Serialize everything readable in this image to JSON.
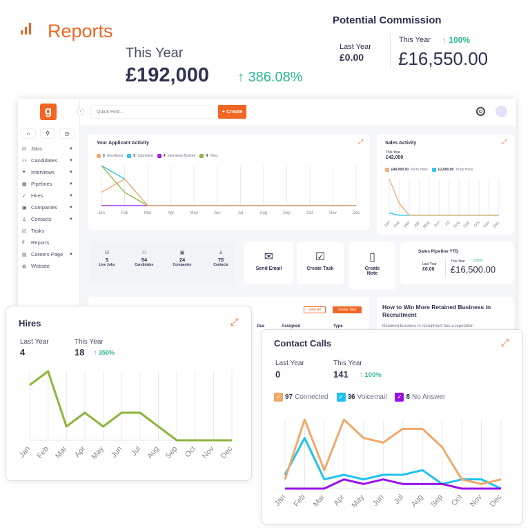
{
  "header": {
    "title": "Reports",
    "this_year_label": "This Year",
    "this_year_value": "£192,000",
    "change": "↑ 386.08%"
  },
  "commission": {
    "title": "Potential Commission",
    "last_year_label": "Last Year",
    "last_year_value": "£0.00",
    "this_year_label": "This Year",
    "change": "↑ 100%",
    "this_year_value": "£16,550.00"
  },
  "topbar": {
    "search_placeholder": "Quick Find...",
    "create_label": "+ Create"
  },
  "sidebar": {
    "items": [
      {
        "label": "Jobs",
        "icon": "⛁",
        "caret": true
      },
      {
        "label": "Candidates",
        "icon": "⚇",
        "caret": true
      },
      {
        "label": "Interviews",
        "icon": "⏷",
        "caret": true
      },
      {
        "label": "Pipelines",
        "icon": "▦",
        "caret": true
      },
      {
        "label": "Hires",
        "icon": "✓",
        "caret": true
      },
      {
        "label": "Companies",
        "icon": "▣",
        "caret": true
      },
      {
        "label": "Contacts",
        "icon": "♙",
        "caret": true
      },
      {
        "label": "Tasks",
        "icon": "☑",
        "caret": false
      },
      {
        "label": "Reports",
        "icon": "ıl",
        "caret": false
      },
      {
        "label": "Careers Page",
        "icon": "▤",
        "caret": true
      },
      {
        "label": "Website",
        "icon": "◍",
        "caret": false
      }
    ]
  },
  "applicant": {
    "title": "Your Applicant Activity",
    "legend": [
      {
        "count": "3",
        "label": "Shortlisted"
      },
      {
        "count": "5",
        "label": "Submitted"
      },
      {
        "count": "4",
        "label": "Interviews Booked"
      },
      {
        "count": "4",
        "label": "Hires"
      }
    ]
  },
  "sales": {
    "title": "Sales Activity",
    "this_year_label": "This Year",
    "this_year_value": "£42,000",
    "legend": [
      {
        "count": "£40,000.00",
        "label": "Perm Hires"
      },
      {
        "count": "£2,000.00",
        "label": "Temp Hires"
      }
    ]
  },
  "stats": [
    {
      "value": "5",
      "label": "Live Jobs",
      "icon": "⛁"
    },
    {
      "value": "54",
      "label": "Candidates",
      "icon": "⚇"
    },
    {
      "value": "24",
      "label": "Companies",
      "icon": "▣"
    },
    {
      "value": "75",
      "label": "Contacts",
      "icon": "♙"
    }
  ],
  "actions": [
    {
      "label": "Send Email",
      "icon": "✉"
    },
    {
      "label": "Create Task",
      "icon": "☑"
    },
    {
      "label": "Create Note",
      "icon": "▯"
    }
  ],
  "pipeline": {
    "title": "Sales Pipeline YTD",
    "last_year_label": "Last Year",
    "last_year_value": "£0.00",
    "this_year_label": "This Year",
    "change": "↑ 100%",
    "this_year_value": "£16,500.00"
  },
  "tasks": {
    "view_all": "View All",
    "create_task": "Create Task",
    "columns": [
      "Due",
      "Assigned",
      "Type"
    ]
  },
  "article": {
    "title": "How to Win More Retained Business in Recruitment",
    "excerpt": "Retained business in recruitment has a reputation"
  },
  "hires": {
    "title": "Hires",
    "last_year_label": "Last Year",
    "last_year_value": "4",
    "this_year_label": "This Year",
    "this_year_value": "18",
    "change": "↑ 350%"
  },
  "calls": {
    "title": "Contact Calls",
    "last_year_label": "Last Year",
    "last_year_value": "0",
    "this_year_label": "This Year",
    "this_year_value": "141",
    "change": "↑ 100%",
    "legend": [
      {
        "count": "97",
        "label": "Connected"
      },
      {
        "count": "36",
        "label": "Voicemail"
      },
      {
        "count": "8",
        "label": "No Answer"
      }
    ]
  },
  "colors": {
    "brand": "#f26522",
    "green": "#2bb894",
    "orange": "#f0a868",
    "cyan": "#1ec2f0",
    "purple": "#9b10e8",
    "lime": "#8cb43c"
  },
  "chart_data": [
    {
      "type": "line",
      "id": "applicant",
      "categories": [
        "Jan",
        "Feb",
        "Mar",
        "Apr",
        "May",
        "Jun",
        "Jul",
        "Aug",
        "Sep",
        "Oct",
        "Nov",
        "Dec"
      ],
      "ylim": [
        0,
        3
      ],
      "series": [
        {
          "name": "Interviews Booked",
          "color": "#9b10e8",
          "values": [
            0,
            0,
            0,
            0,
            0,
            0,
            0,
            0,
            0,
            0,
            0,
            0
          ]
        },
        {
          "name": "Submitted",
          "color": "#1ec2f0",
          "values": [
            3,
            2,
            0,
            0,
            0,
            0,
            0,
            0,
            0,
            0,
            0,
            0
          ]
        },
        {
          "name": "Hires",
          "color": "#8cb43c",
          "values": [
            3,
            1,
            0,
            0,
            0,
            0,
            0,
            0,
            0,
            0,
            0,
            0
          ]
        },
        {
          "name": "Shortlisted",
          "color": "#f0a868",
          "values": [
            1,
            2,
            0,
            0,
            0,
            0,
            0,
            0,
            0,
            0,
            0,
            0
          ]
        }
      ]
    },
    {
      "type": "line",
      "id": "sales",
      "categories": [
        "Jan",
        "Feb",
        "Mar",
        "Apr",
        "May",
        "Jun",
        "Jul",
        "Aug",
        "Sep",
        "Oct",
        "Nov",
        "Dec"
      ],
      "ylim": [
        0,
        30000
      ],
      "series": [
        {
          "name": "Temp Hires",
          "color": "#1ec2f0",
          "values": [
            2000,
            0,
            0,
            0,
            0,
            0,
            0,
            0,
            0,
            0,
            0,
            0
          ]
        },
        {
          "name": "Perm Hires",
          "color": "#f0a868",
          "values": [
            30000,
            10000,
            0,
            0,
            0,
            0,
            0,
            0,
            0,
            0,
            0,
            0
          ]
        }
      ]
    },
    {
      "type": "line",
      "id": "hires",
      "categories": [
        "Jan",
        "Feb",
        "Mar",
        "Apr",
        "May",
        "Jun",
        "Jul",
        "Aug",
        "Sep",
        "Oct",
        "Nov",
        "Dec"
      ],
      "ylim": [
        0,
        5
      ],
      "series": [
        {
          "color": "#8cb43c",
          "values": [
            4,
            5,
            1,
            2,
            1,
            2,
            2,
            1,
            0,
            0,
            0,
            0
          ]
        }
      ]
    },
    {
      "type": "line",
      "id": "calls",
      "categories": [
        "Jan",
        "Feb",
        "Mar",
        "Apr",
        "May",
        "Jun",
        "Jul",
        "Aug",
        "Sep",
        "Oct",
        "Nov",
        "Dec"
      ],
      "ylim": [
        0,
        15
      ],
      "series": [
        {
          "name": "Voicemail",
          "color": "#1ec2f0",
          "values": [
            3,
            11,
            2,
            3,
            2,
            3,
            3,
            4,
            1,
            2,
            2,
            0
          ]
        },
        {
          "name": "Connected",
          "color": "#f0a868",
          "values": [
            2,
            15,
            4,
            15,
            11,
            10,
            13,
            13,
            9,
            2,
            1,
            2
          ]
        },
        {
          "name": "No Answer",
          "color": "#9b10e8",
          "values": [
            0,
            0,
            0,
            2,
            1,
            2,
            1,
            1,
            1,
            0,
            0,
            0
          ]
        }
      ]
    }
  ]
}
